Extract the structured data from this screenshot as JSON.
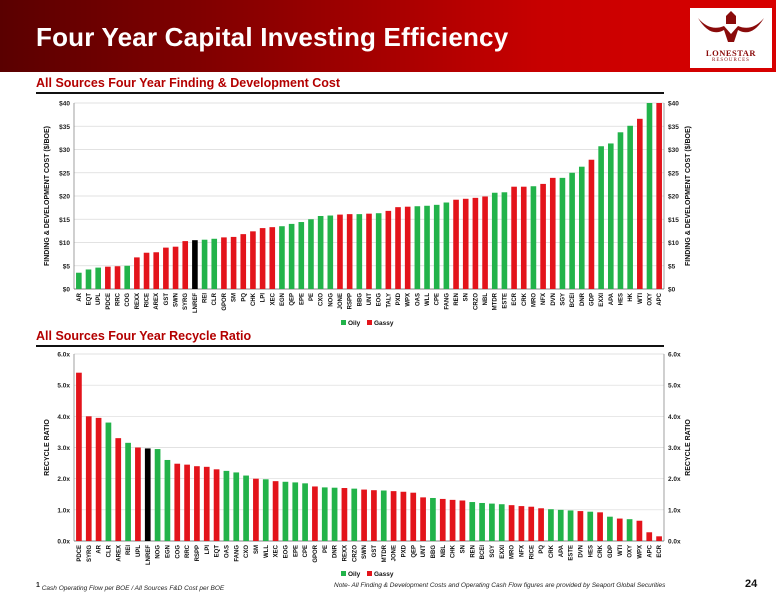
{
  "header": {
    "title": "Four Year Capital Investing Efficiency",
    "logo_text": "LONESTAR",
    "logo_sub": "RESOURCES"
  },
  "colors": {
    "oily": "#22b34a",
    "gassy": "#e3141b",
    "highlight": "#000000"
  },
  "chart_data": [
    {
      "type": "bar",
      "title": "All Sources Four Year Finding & Development Cost",
      "ylabel": "FINDING & DEVELOPMENT COST ($/BOE)",
      "ylim": [
        0,
        40
      ],
      "yticks": [
        "$0",
        "$5",
        "$10",
        "$15",
        "$20",
        "$25",
        "$30",
        "$35",
        "$40"
      ],
      "grid": true,
      "legend": "bottom",
      "legend_labels": [
        "Oily",
        "Gassy"
      ],
      "categories": [
        "AR",
        "EQT",
        "UPL",
        "PDCE",
        "RRC",
        "COG",
        "REXX",
        "RICE",
        "AREX",
        "GST",
        "SWN",
        "SYRG",
        "LNREF",
        "REI",
        "CLR",
        "GPOR",
        "SM",
        "PQ",
        "CHK",
        "LPI",
        "XEC",
        "EGN",
        "QEP",
        "EPE",
        "PE",
        "CXO",
        "NOG",
        "JONE",
        "RSPP",
        "BBG",
        "UNT",
        "EOG",
        "TALY",
        "PXD",
        "WPX",
        "OAS",
        "WLL",
        "CPE",
        "FANG",
        "REN",
        "SN",
        "CRZO",
        "NBL",
        "MTDR",
        "ESTE",
        "ECR",
        "CRK",
        "MRO",
        "NFX",
        "DVN",
        "SGY",
        "BCEI",
        "DNR",
        "GDP",
        "EXXI",
        "APA",
        "HES",
        "HK",
        "WTI",
        "OXY",
        "APC"
      ],
      "values": [
        3.5,
        4.2,
        4.6,
        4.8,
        4.9,
        5.0,
        6.8,
        7.8,
        7.9,
        8.9,
        9.1,
        10.3,
        10.5,
        10.6,
        10.8,
        11.1,
        11.2,
        11.8,
        12.4,
        13.1,
        13.3,
        13.5,
        14.0,
        14.4,
        15.0,
        15.7,
        15.8,
        16.0,
        16.1,
        16.1,
        16.2,
        16.3,
        16.8,
        17.6,
        17.7,
        17.8,
        17.9,
        18.1,
        18.6,
        19.2,
        19.4,
        19.6,
        19.9,
        20.7,
        20.8,
        22.0,
        22.0,
        22.1,
        22.6,
        23.9,
        23.9,
        25.0,
        26.3,
        27.8,
        30.7,
        31.3,
        33.7,
        35.1,
        36.6,
        40.0,
        40.0
      ],
      "series_type": [
        "g",
        "g",
        "g",
        "r",
        "r",
        "g",
        "r",
        "r",
        "r",
        "r",
        "r",
        "r",
        "k",
        "g",
        "g",
        "r",
        "r",
        "r",
        "r",
        "r",
        "r",
        "g",
        "g",
        "g",
        "g",
        "g",
        "g",
        "r",
        "r",
        "g",
        "r",
        "g",
        "r",
        "r",
        "r",
        "g",
        "g",
        "g",
        "g",
        "r",
        "r",
        "r",
        "r",
        "g",
        "g",
        "r",
        "r",
        "g",
        "r",
        "r",
        "g",
        "g",
        "g",
        "r",
        "g",
        "g",
        "g",
        "g",
        "r",
        "g",
        "r"
      ]
    },
    {
      "type": "bar",
      "title": "All Sources Four Year Recycle Ratio",
      "ylabel": "RECYCLE RATIO",
      "ylim": [
        0,
        6
      ],
      "yticks": [
        "0.0x",
        "1.0x",
        "2.0x",
        "3.0x",
        "4.0x",
        "5.0x",
        "6.0x"
      ],
      "grid": true,
      "legend": "bottom",
      "legend_labels": [
        "Oily",
        "Gassy"
      ],
      "categories": [
        "PDCE",
        "SYRG",
        "AR",
        "CLR",
        "AREX",
        "REI",
        "UPL",
        "LNREF",
        "NOG",
        "EGN",
        "COG",
        "RRC",
        "RSPP",
        "LPI",
        "EQT",
        "OAS",
        "FANG",
        "CXO",
        "SM",
        "WLL",
        "XEC",
        "EOG",
        "EPE",
        "CPE",
        "GPOR",
        "PE",
        "DNR",
        "REXX",
        "CRZO",
        "SWN",
        "GST",
        "MTDR",
        "JONE",
        "PXD",
        "QEP",
        "UNT",
        "BBG",
        "NBL",
        "CHK",
        "SN",
        "REN",
        "BCEI",
        "SGY",
        "EXXI",
        "MRO",
        "NFX",
        "RICE",
        "PQ",
        "CRK",
        "APA",
        "ESTE",
        "DVN",
        "HES",
        "CRK",
        "GDP",
        "WTI",
        "OXY",
        "WPX",
        "APC",
        "ECR"
      ],
      "values": [
        5.4,
        4.0,
        3.95,
        3.8,
        3.3,
        3.15,
        3.0,
        2.97,
        2.95,
        2.6,
        2.48,
        2.45,
        2.4,
        2.38,
        2.3,
        2.25,
        2.2,
        2.1,
        2.0,
        1.98,
        1.92,
        1.9,
        1.88,
        1.85,
        1.75,
        1.72,
        1.71,
        1.7,
        1.68,
        1.65,
        1.63,
        1.62,
        1.6,
        1.58,
        1.55,
        1.4,
        1.38,
        1.35,
        1.32,
        1.3,
        1.25,
        1.22,
        1.2,
        1.18,
        1.15,
        1.12,
        1.1,
        1.05,
        1.02,
        1.0,
        0.98,
        0.96,
        0.94,
        0.92,
        0.78,
        0.72,
        0.7,
        0.65,
        0.28,
        0.15
      ],
      "series_type": [
        "r",
        "r",
        "r",
        "g",
        "r",
        "g",
        "r",
        "k",
        "g",
        "g",
        "r",
        "r",
        "r",
        "r",
        "r",
        "g",
        "g",
        "g",
        "r",
        "g",
        "r",
        "g",
        "g",
        "g",
        "r",
        "g",
        "g",
        "r",
        "g",
        "r",
        "r",
        "g",
        "r",
        "r",
        "r",
        "r",
        "g",
        "r",
        "r",
        "r",
        "g",
        "g",
        "g",
        "g",
        "r",
        "r",
        "r",
        "r",
        "g",
        "g",
        "g",
        "r",
        "g",
        "r",
        "g",
        "r",
        "g",
        "r",
        "r",
        "r"
      ]
    }
  ],
  "footer": {
    "footnote_mark": "1",
    "footnote": "Cash Operating Flow per BOE / All Sources F&D Cost per BOE",
    "note": "Note- All Finding & Development Costs and Operating Cash Flow figures are provided by Seaport Global Securities",
    "page_number": "24"
  }
}
